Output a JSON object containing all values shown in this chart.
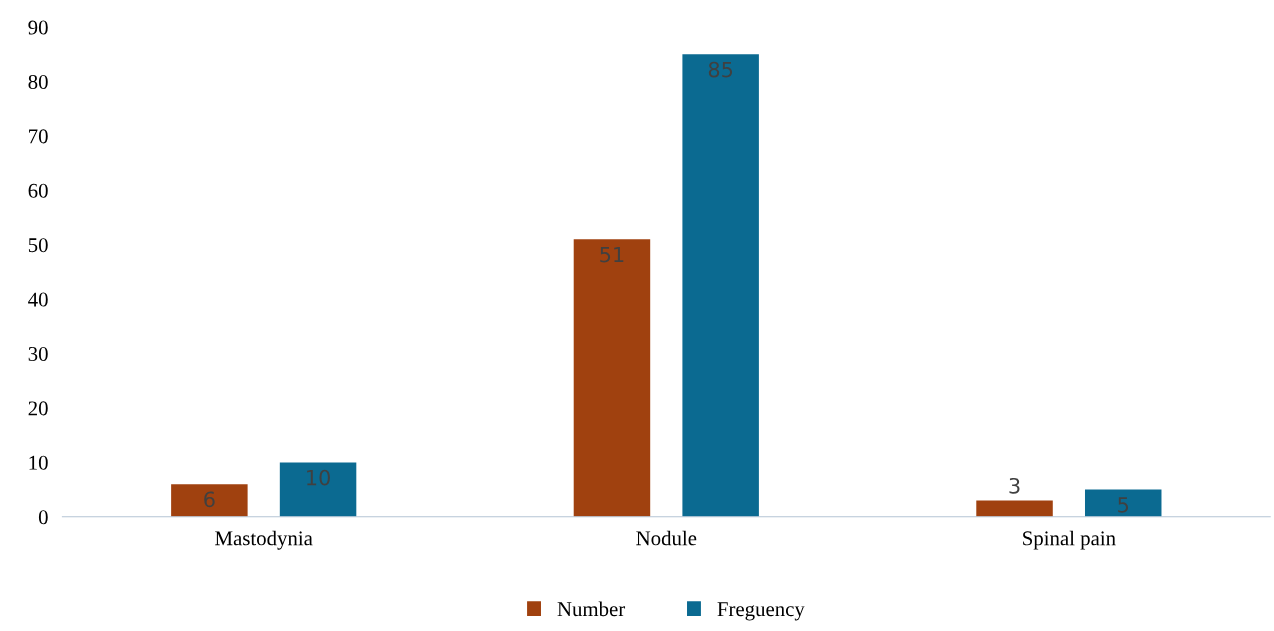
{
  "chart_data": {
    "type": "bar",
    "categories": [
      "Mastodynia",
      "Nodule",
      "Spinal pain"
    ],
    "series": [
      {
        "name": "Number",
        "color": "#a0410f",
        "values": [
          6,
          51,
          3
        ]
      },
      {
        "name": "Freguency",
        "color": "#0b6a91",
        "values": [
          10,
          85,
          5
        ]
      }
    ],
    "ylim": [
      0,
      90
    ],
    "yticks": [
      0,
      10,
      20,
      30,
      40,
      50,
      60,
      70,
      80,
      90
    ],
    "grid": false,
    "legend": "bottom",
    "data_labels": true
  }
}
